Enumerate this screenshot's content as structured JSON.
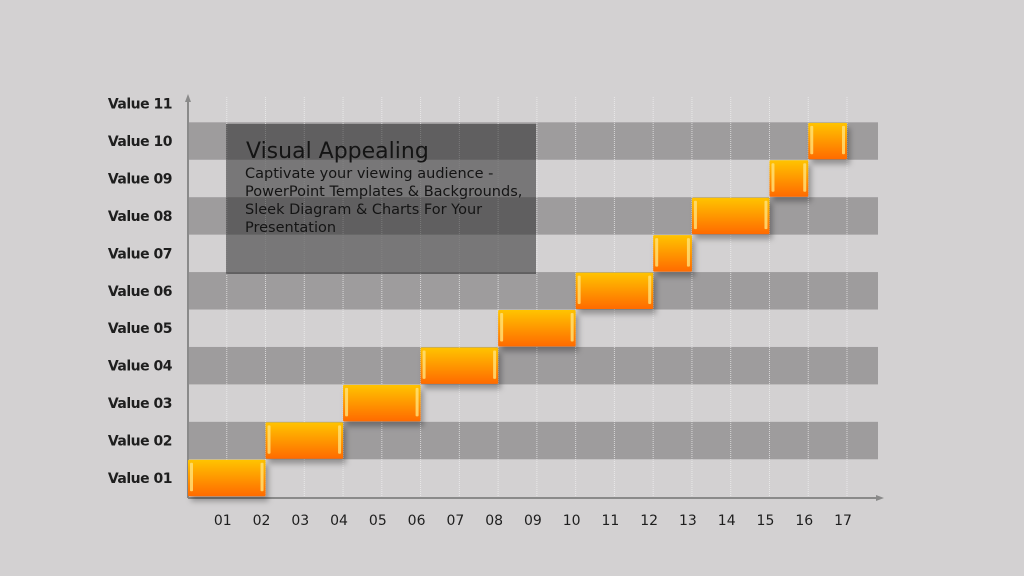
{
  "chart_data": {
    "type": "bar",
    "subtype": "gantt-step",
    "categories": [
      "Value 01",
      "Value 02",
      "Value 03",
      "Value 04",
      "Value 05",
      "Value 06",
      "Value 07",
      "Value 08",
      "Value 09",
      "Value 10",
      "Value 11"
    ],
    "x_ticks": [
      "01",
      "02",
      "03",
      "04",
      "05",
      "06",
      "07",
      "08",
      "09",
      "10",
      "11",
      "12",
      "13",
      "14",
      "15",
      "16",
      "17"
    ],
    "xlim": [
      0,
      17
    ],
    "bars": [
      {
        "category": "Value 01",
        "start": 0,
        "end": 2
      },
      {
        "category": "Value 02",
        "start": 2,
        "end": 4
      },
      {
        "category": "Value 03",
        "start": 4,
        "end": 6
      },
      {
        "category": "Value 04",
        "start": 6,
        "end": 8
      },
      {
        "category": "Value 05",
        "start": 8,
        "end": 10
      },
      {
        "category": "Value 06",
        "start": 10,
        "end": 12
      },
      {
        "category": "Value 07",
        "start": 12,
        "end": 13
      },
      {
        "category": "Value 08",
        "start": 13,
        "end": 15
      },
      {
        "category": "Value 09",
        "start": 15,
        "end": 16
      },
      {
        "category": "Value 10",
        "start": 16,
        "end": 17
      }
    ],
    "grid": true,
    "colors": {
      "bar_top": "#ffc400",
      "bar_bottom": "#ff6a00",
      "band": "#9e9c9d",
      "background": "#d3d1d2"
    }
  },
  "callout": {
    "title": "Visual Appealing",
    "body": "Captivate your viewing audience - PowerPoint Templates & Backgrounds, Sleek Diagram & Charts For Your Presentation"
  }
}
